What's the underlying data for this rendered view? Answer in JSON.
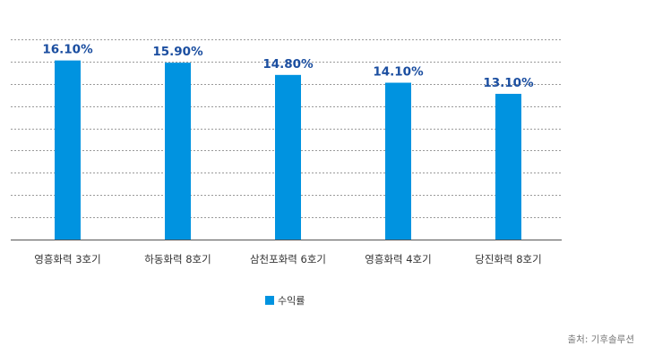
{
  "chart_data": {
    "type": "bar",
    "categories": [
      "영흥화력 3호기",
      "하동화력 8호기",
      "삼천포화력 6호기",
      "영흥화력 4호기",
      "당진화력 8호기"
    ],
    "series": [
      {
        "name": "수익률",
        "values": [
          16.1,
          15.9,
          14.8,
          14.1,
          13.1
        ]
      }
    ],
    "value_labels": [
      "16.10%",
      "15.90%",
      "14.80%",
      "14.10%",
      "13.10%"
    ],
    "ylim": [
      0,
      18
    ],
    "grid": true,
    "legend": "bottom-center",
    "bar_color": "#0093E0",
    "label_color": "#1b4ea0"
  },
  "source": "출처: 기후솔루션"
}
